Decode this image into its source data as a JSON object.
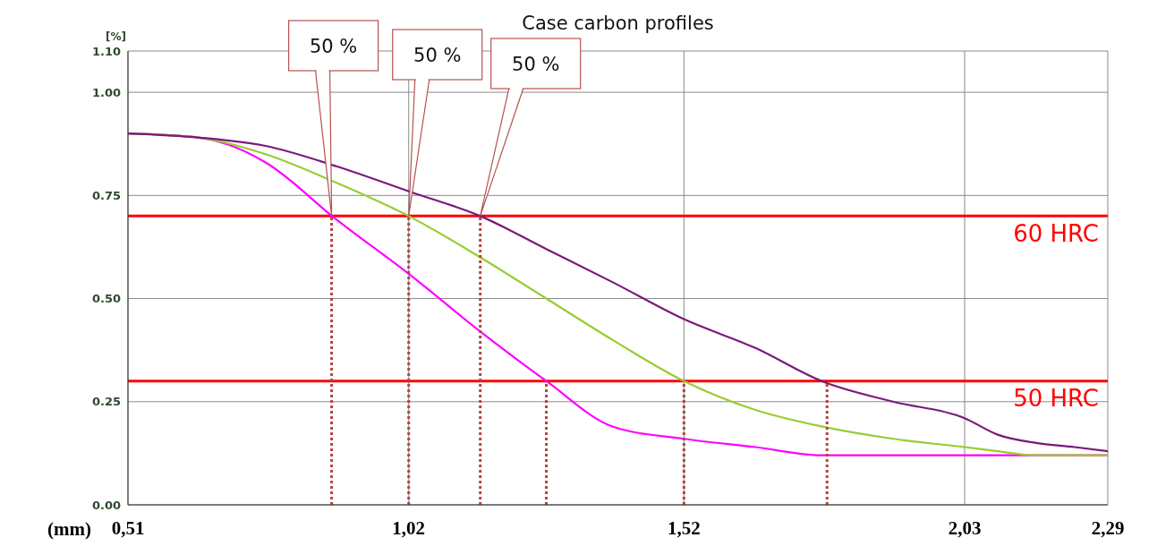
{
  "chart_data": {
    "type": "line",
    "title": "Case carbon profiles",
    "ylabel": "[%]",
    "xlabel": "(mm)",
    "x": [
      0.51,
      0.64,
      0.76,
      0.89,
      1.02,
      1.15,
      1.27,
      1.39,
      1.52,
      1.65,
      1.77,
      1.9,
      2.03,
      2.09,
      2.16,
      2.23,
      2.29
    ],
    "xlim": [
      0.51,
      2.29
    ],
    "xticks": [
      {
        "value": 0.51,
        "label": "0,51"
      },
      {
        "value": 1.02,
        "label": "1,02"
      },
      {
        "value": 1.52,
        "label": "1,52"
      },
      {
        "value": 2.03,
        "label": "2,03"
      },
      {
        "value": 2.29,
        "label": "2,29"
      }
    ],
    "ylim": [
      0,
      1.1
    ],
    "yticks": [
      {
        "value": 0,
        "label": "0.00"
      },
      {
        "value": 0.25,
        "label": "0.25"
      },
      {
        "value": 0.5,
        "label": "0.50"
      },
      {
        "value": 0.75,
        "label": "0.75"
      },
      {
        "value": 1,
        "label": "1.00"
      },
      {
        "value": 1.1,
        "label": "1.10"
      }
    ],
    "grid": true,
    "series": [
      {
        "color": "#ff00ff",
        "values": [
          0.9,
          0.89,
          0.83,
          0.69,
          0.56,
          0.42,
          0.3,
          0.19,
          0.16,
          0.14,
          0.12,
          0.12,
          0.12,
          0.12,
          0.12,
          0.12,
          0.12
        ]
      },
      {
        "color": "#99cc33",
        "values": [
          0.9,
          0.89,
          0.85,
          0.78,
          0.7,
          0.6,
          0.5,
          0.4,
          0.3,
          0.23,
          0.19,
          0.16,
          0.14,
          0.13,
          0.12,
          0.12,
          0.12
        ]
      },
      {
        "color": "#7a1a7a",
        "values": [
          0.9,
          0.89,
          0.87,
          0.82,
          0.76,
          0.7,
          0.62,
          0.54,
          0.45,
          0.38,
          0.3,
          0.25,
          0.21,
          0.17,
          0.15,
          0.14,
          0.13
        ]
      },
      {
        "type": "line",
        "color": "#b5433f",
        "line_style": "dotted",
        "x": [
          0.88,
          0.88
        ],
        "values": [
          0,
          0.7
        ]
      },
      {
        "type": "line",
        "color": "#b5433f",
        "line_style": "dotted",
        "x": [
          1.02,
          1.02
        ],
        "values": [
          0,
          0.7
        ]
      },
      {
        "type": "line",
        "color": "#b5433f",
        "line_style": "dotted",
        "x": [
          1.15,
          1.15
        ],
        "values": [
          0,
          0.7
        ]
      },
      {
        "type": "line",
        "color": "#b5433f",
        "line_style": "dotted",
        "x": [
          1.27,
          1.27
        ],
        "values": [
          0,
          0.3
        ]
      },
      {
        "type": "line",
        "color": "#b5433f",
        "line_style": "dotted",
        "x": [
          1.52,
          1.52
        ],
        "values": [
          0,
          0.3
        ]
      },
      {
        "type": "line",
        "color": "#b5433f",
        "line_style": "dotted",
        "x": [
          1.78,
          1.78
        ],
        "values": [
          0,
          0.3
        ]
      }
    ],
    "ref_lines": [
      {
        "axis": "y",
        "value": 0.7,
        "label": "60 HRC",
        "color": "#ff0000"
      },
      {
        "axis": "y",
        "value": 0.3,
        "label": "50 HRC",
        "color": "#ff0000"
      }
    ],
    "annotations": [
      {
        "text": "50 %",
        "x": 0.88,
        "y": 0.7
      },
      {
        "text": "50 %",
        "x": 1.02,
        "y": 0.7
      },
      {
        "text": "50 %",
        "x": 1.15,
        "y": 0.7
      }
    ]
  }
}
